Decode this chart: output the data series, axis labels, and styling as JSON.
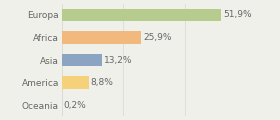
{
  "categories": [
    "Europa",
    "Africa",
    "Asia",
    "America",
    "Oceania"
  ],
  "values": [
    51.9,
    25.9,
    13.2,
    8.8,
    0.2
  ],
  "labels": [
    "51,9%",
    "25,9%",
    "13,2%",
    "8,8%",
    "0,2%"
  ],
  "bar_colors": [
    "#b5cc8e",
    "#f2b97e",
    "#8aa4c1",
    "#f5d27a",
    "#f2b97e"
  ],
  "background_color": "#f0f0eb",
  "text_color": "#666666",
  "label_fontsize": 6.5,
  "tick_fontsize": 6.5,
  "xlim": [
    0,
    60
  ],
  "bar_height": 0.55,
  "grid_color": "#d8d8d0"
}
